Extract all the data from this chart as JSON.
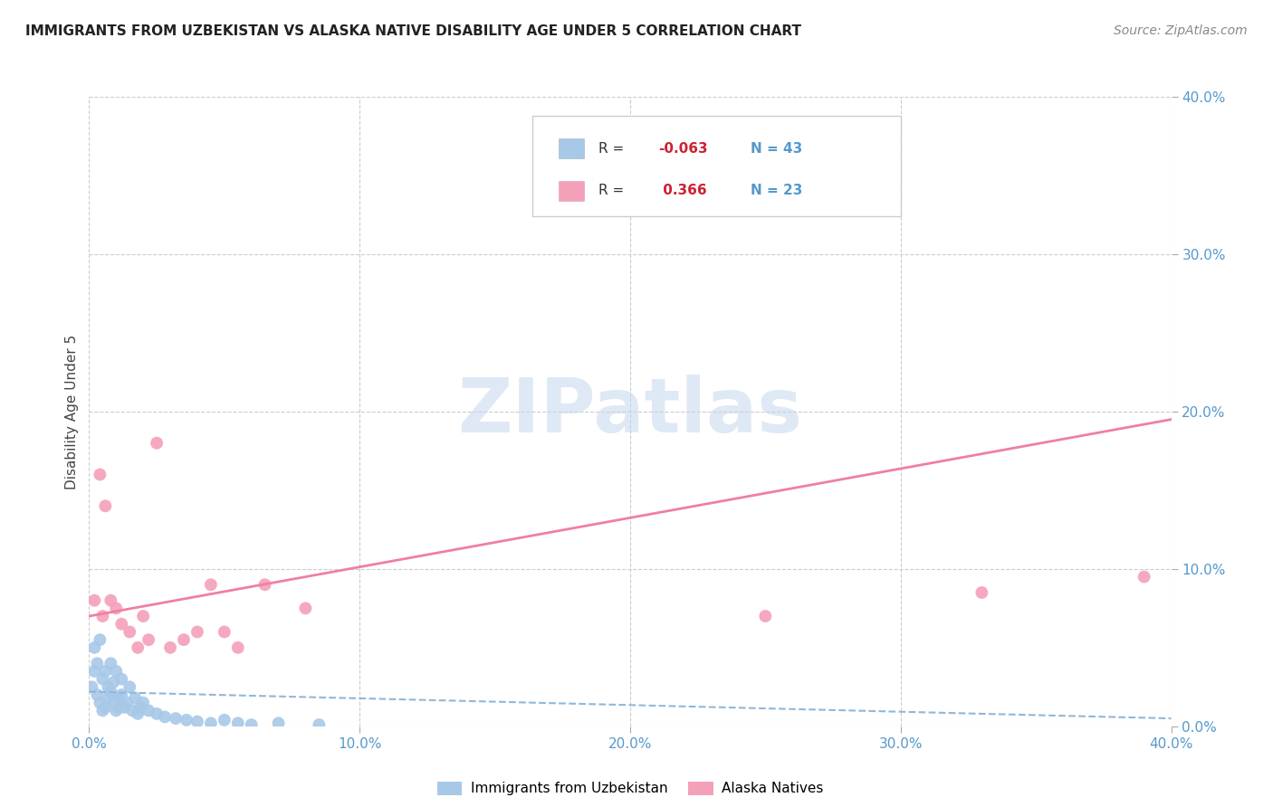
{
  "title": "IMMIGRANTS FROM UZBEKISTAN VS ALASKA NATIVE DISABILITY AGE UNDER 5 CORRELATION CHART",
  "source": "Source: ZipAtlas.com",
  "ylabel": "Disability Age Under 5",
  "xlim": [
    0.0,
    0.4
  ],
  "ylim": [
    0.0,
    0.4
  ],
  "xticks": [
    0.0,
    0.1,
    0.2,
    0.3,
    0.4
  ],
  "yticks": [
    0.0,
    0.1,
    0.2,
    0.3,
    0.4
  ],
  "legend1_R": "-0.063",
  "legend1_N": "43",
  "legend2_R": "0.366",
  "legend2_N": "23",
  "color_uzbekistan": "#a8c8e8",
  "color_alaska": "#f4a0b8",
  "line_uzbekistan_color": "#90b8d8",
  "line_alaska_color": "#f080a0",
  "watermark": "ZIPatlas",
  "uzbekistan_x": [
    0.001,
    0.002,
    0.002,
    0.003,
    0.003,
    0.004,
    0.004,
    0.005,
    0.005,
    0.006,
    0.006,
    0.007,
    0.007,
    0.008,
    0.008,
    0.009,
    0.009,
    0.01,
    0.01,
    0.011,
    0.011,
    0.012,
    0.012,
    0.013,
    0.014,
    0.015,
    0.016,
    0.017,
    0.018,
    0.019,
    0.02,
    0.022,
    0.025,
    0.028,
    0.032,
    0.036,
    0.04,
    0.045,
    0.05,
    0.055,
    0.06,
    0.07,
    0.085
  ],
  "uzbekistan_y": [
    0.025,
    0.05,
    0.035,
    0.04,
    0.02,
    0.055,
    0.015,
    0.03,
    0.01,
    0.035,
    0.012,
    0.025,
    0.018,
    0.04,
    0.022,
    0.015,
    0.028,
    0.01,
    0.035,
    0.018,
    0.012,
    0.02,
    0.03,
    0.012,
    0.015,
    0.025,
    0.01,
    0.018,
    0.008,
    0.012,
    0.015,
    0.01,
    0.008,
    0.006,
    0.005,
    0.004,
    0.003,
    0.002,
    0.004,
    0.002,
    0.001,
    0.002,
    0.001
  ],
  "alaska_x": [
    0.002,
    0.004,
    0.005,
    0.006,
    0.008,
    0.01,
    0.012,
    0.015,
    0.018,
    0.02,
    0.022,
    0.025,
    0.03,
    0.035,
    0.04,
    0.045,
    0.05,
    0.055,
    0.065,
    0.08,
    0.25,
    0.33,
    0.39
  ],
  "alaska_y": [
    0.08,
    0.16,
    0.07,
    0.14,
    0.08,
    0.075,
    0.065,
    0.06,
    0.05,
    0.07,
    0.055,
    0.18,
    0.05,
    0.055,
    0.06,
    0.09,
    0.06,
    0.05,
    0.09,
    0.075,
    0.07,
    0.085,
    0.095
  ],
  "alaska_line_x0": 0.0,
  "alaska_line_y0": 0.07,
  "alaska_line_x1": 0.4,
  "alaska_line_y1": 0.195,
  "uzb_line_x0": 0.0,
  "uzb_line_y0": 0.022,
  "uzb_line_x1": 0.4,
  "uzb_line_y1": 0.005
}
